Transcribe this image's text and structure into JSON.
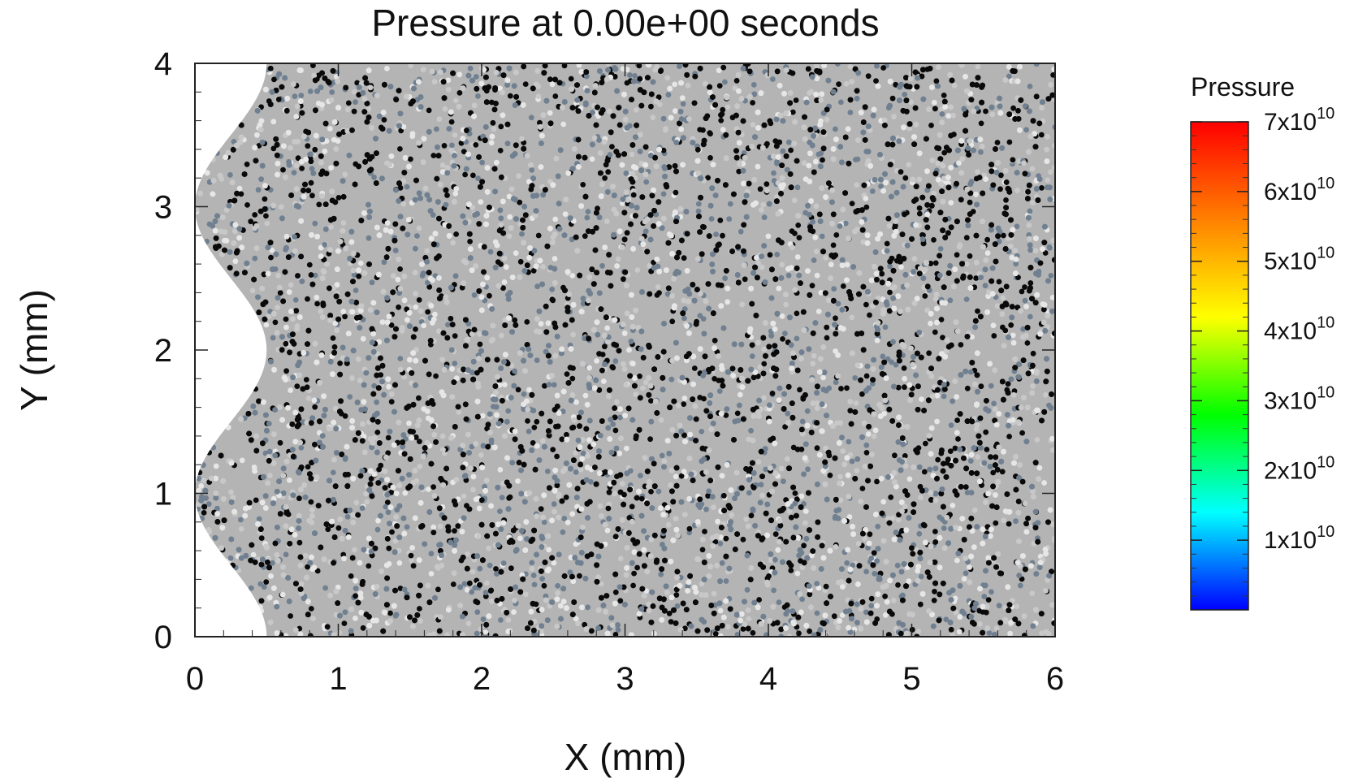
{
  "chart_data": {
    "type": "scatter",
    "title": "Pressure at 0.00e+00 seconds",
    "xlabel": "X (mm)",
    "ylabel": "Y (mm)",
    "xlim": [
      0,
      6
    ],
    "ylim": [
      0,
      4
    ],
    "x_ticks": [
      "0",
      "1",
      "2",
      "3",
      "4",
      "5",
      "6"
    ],
    "y_ticks": [
      "0",
      "1",
      "2",
      "3",
      "4"
    ],
    "grid": false,
    "legend": "none",
    "particle_colors": [
      "#0a0a0a",
      "#708090",
      "#c8c8c8",
      "#e6e6e6"
    ],
    "boundary": {
      "description_shape": "sinusoidal left edge",
      "points": [
        [
          0.5,
          0
        ],
        [
          0.0,
          1.0
        ],
        [
          0.5,
          2.0
        ],
        [
          0.0,
          3.0
        ],
        [
          0.5,
          4.0
        ]
      ]
    },
    "colorbar": {
      "title": "Pressure",
      "min": 0,
      "max": 70000000000,
      "ticks": [
        {
          "value": 10000000000,
          "mantissa": "1x10",
          "exp": "10"
        },
        {
          "value": 20000000000,
          "mantissa": "2x10",
          "exp": "10"
        },
        {
          "value": 30000000000,
          "mantissa": "3x10",
          "exp": "10"
        },
        {
          "value": 40000000000,
          "mantissa": "4x10",
          "exp": "10"
        },
        {
          "value": 50000000000,
          "mantissa": "5x10",
          "exp": "10"
        },
        {
          "value": 60000000000,
          "mantissa": "6x10",
          "exp": "10"
        },
        {
          "value": 70000000000,
          "mantissa": "7x10",
          "exp": "10"
        }
      ],
      "colormap": [
        "#0000ff",
        "#00ffff",
        "#00ff00",
        "#ffff00",
        "#ff8000",
        "#ff0000"
      ],
      "position": "right"
    }
  }
}
